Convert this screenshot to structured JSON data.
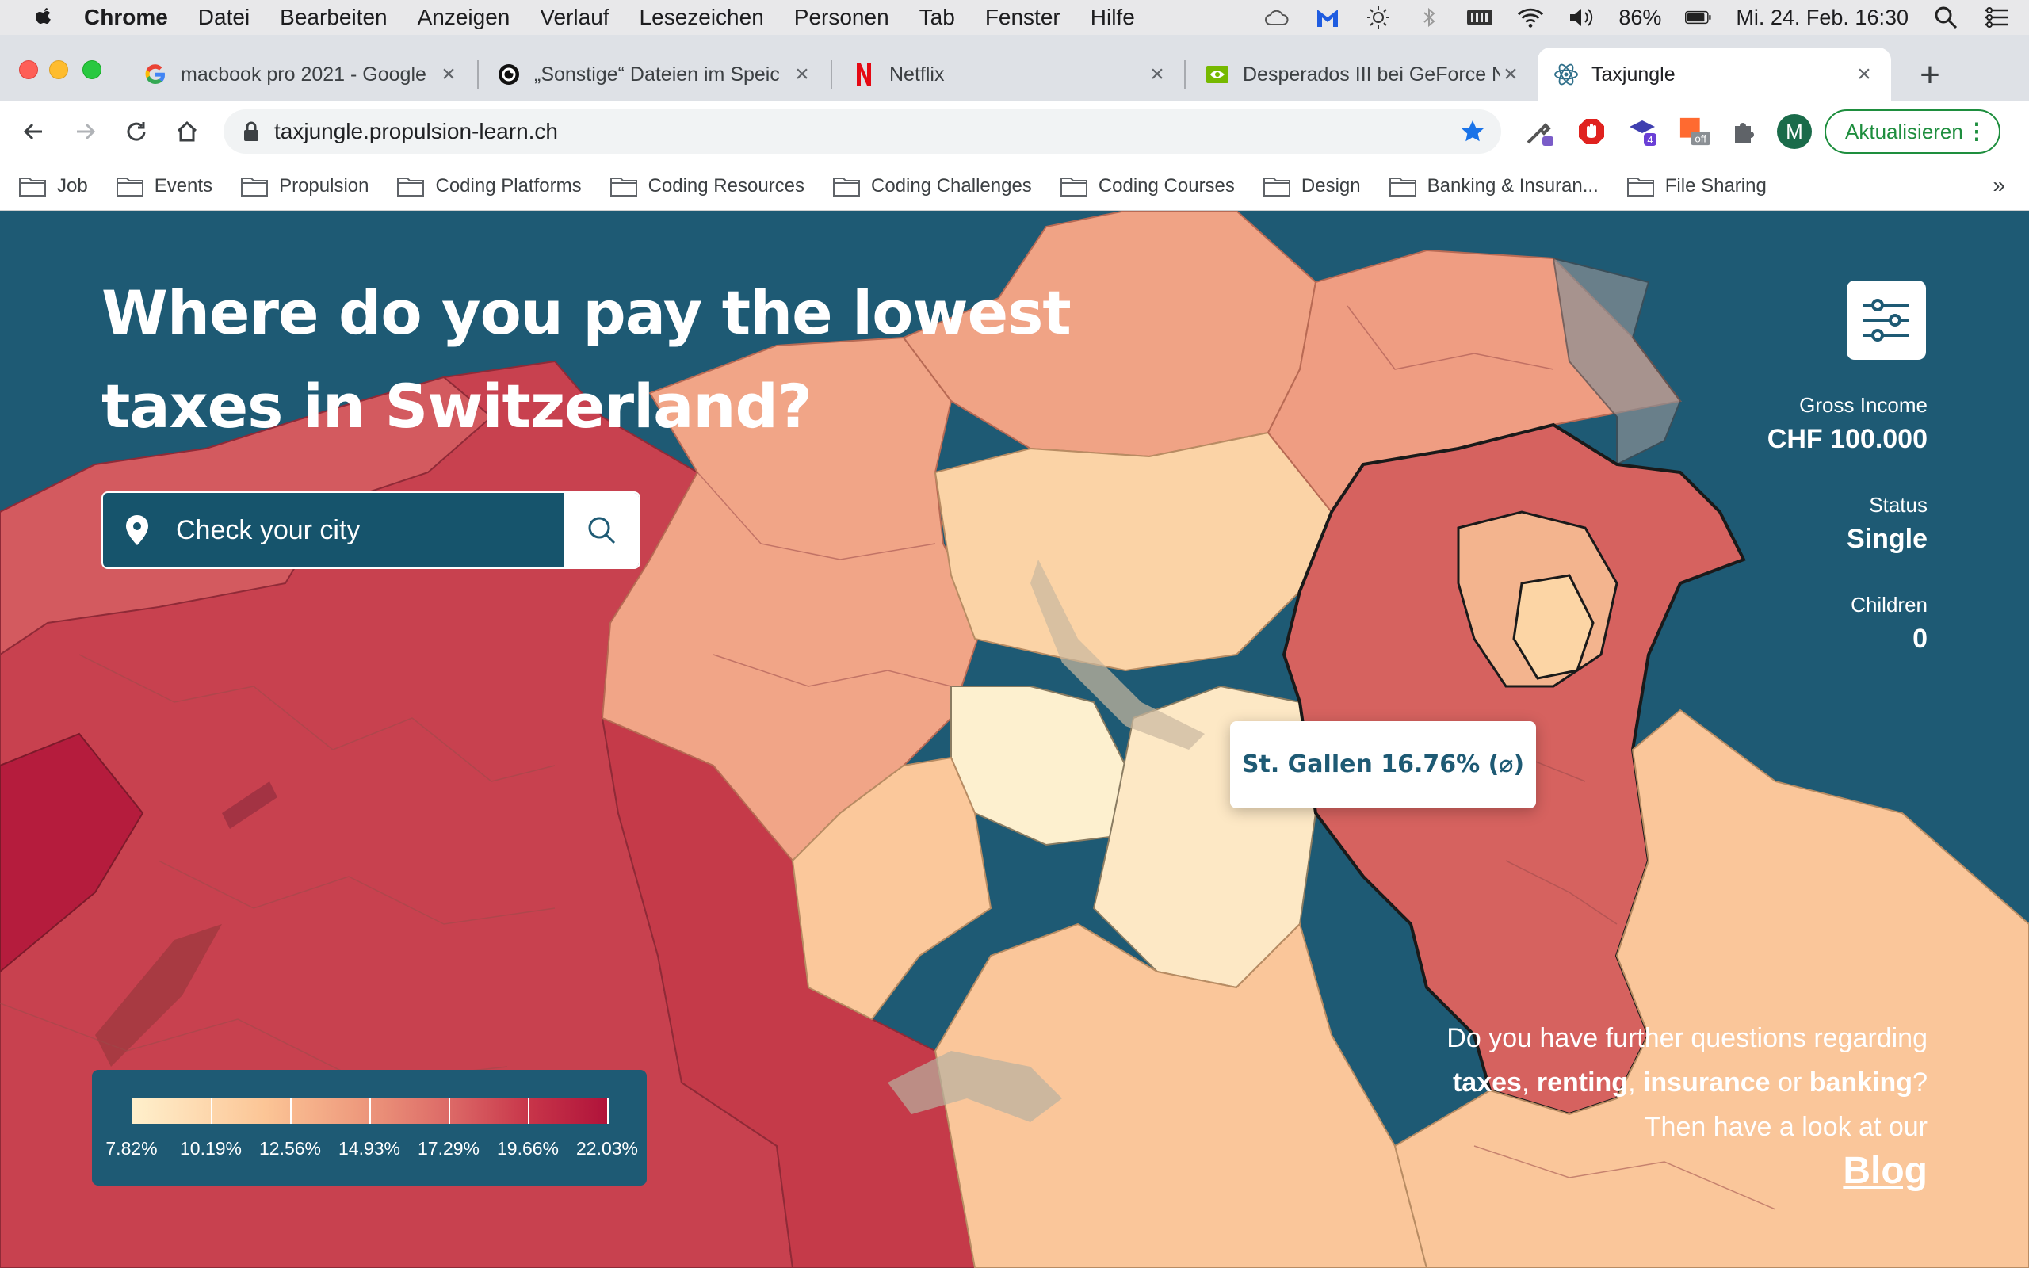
{
  "menubar": {
    "app_name": "Chrome",
    "items": [
      "Datei",
      "Bearbeiten",
      "Anzeigen",
      "Verlauf",
      "Lesezeichen",
      "Personen",
      "Tab",
      "Fenster",
      "Hilfe"
    ],
    "battery": "86%",
    "datetime": "Mi. 24. Feb. 16:30"
  },
  "tabs": [
    {
      "title": "macbook pro 2021 - Google",
      "favicon": "google-icon"
    },
    {
      "title": "„Sonstige“ Dateien im Speic",
      "favicon": "circle-logo-icon"
    },
    {
      "title": "Netflix",
      "favicon": "netflix-icon"
    },
    {
      "title": "Desperados III bei GeForce N",
      "favicon": "nvidia-icon"
    },
    {
      "title": "Taxjungle",
      "favicon": "react-icon"
    }
  ],
  "toolbar": {
    "url": "taxjungle.propulsion-learn.ch",
    "profile_initial": "M",
    "update_label": "Aktualisieren",
    "ext_badge": "4",
    "ext_badge_off": "off"
  },
  "bookmarks": [
    "Job",
    "Events",
    "Propulsion",
    "Coding Platforms",
    "Coding Resources",
    "Coding Challenges",
    "Coding Courses",
    "Design",
    "Banking & Insuran...",
    "File Sharing"
  ],
  "page": {
    "title_line1": "Where do you pay the lowest",
    "title_line2": "taxes in Switzerland?",
    "search_placeholder": "Check your city",
    "gross_income_label": "Gross Income",
    "gross_income_value": "CHF 100.000",
    "status_label": "Status",
    "status_value": "Single",
    "children_label": "Children",
    "children_value": "0",
    "tooltip": "St. Gallen 16.76% (⌀)",
    "legend_labels": [
      "7.82%",
      "10.19%",
      "12.56%",
      "14.93%",
      "17.29%",
      "19.66%",
      "22.03%"
    ],
    "blog_line1": "Do you have further questions regarding",
    "blog_taxes": "taxes",
    "blog_renting": "renting",
    "blog_insurance": "insurance",
    "blog_or": "or",
    "blog_banking": "banking",
    "blog_line3": "Then have a look at our",
    "blog_link": "Blog"
  },
  "colors": {
    "background": "#1e5a74",
    "scale_low": "#fff0cc",
    "scale_high": "#b0133a",
    "update_green": "#1e8e3e"
  }
}
